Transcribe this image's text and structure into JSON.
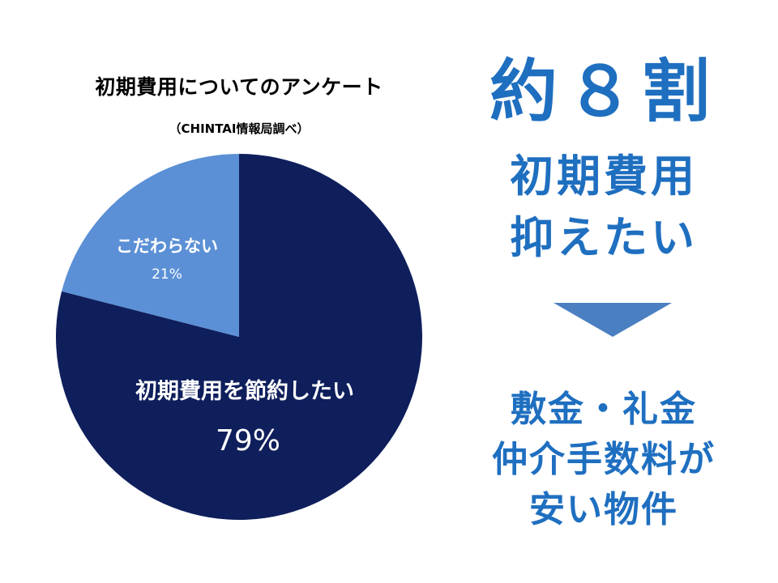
{
  "chart_data": {
    "type": "pie",
    "title": "初期費用についてのアンケート",
    "subtitle": "（CHINTAI情報局調べ）",
    "slices": [
      {
        "label": "初期費用を節約したい",
        "value": 79,
        "value_label": "79%",
        "color": "#0f1f5c"
      },
      {
        "label": "こだわらない",
        "value": 21,
        "value_label": "21%",
        "color": "#5b90d6"
      }
    ]
  },
  "right_panel": {
    "headline": "約８割",
    "line1": "初期費用",
    "line2": "抑えたい",
    "arrow_color": "#4a7fc1",
    "result1": "敷金・礼金",
    "result2": "仲介手数料が",
    "result3": "安い物件",
    "text_color": "#1f6fc0"
  }
}
